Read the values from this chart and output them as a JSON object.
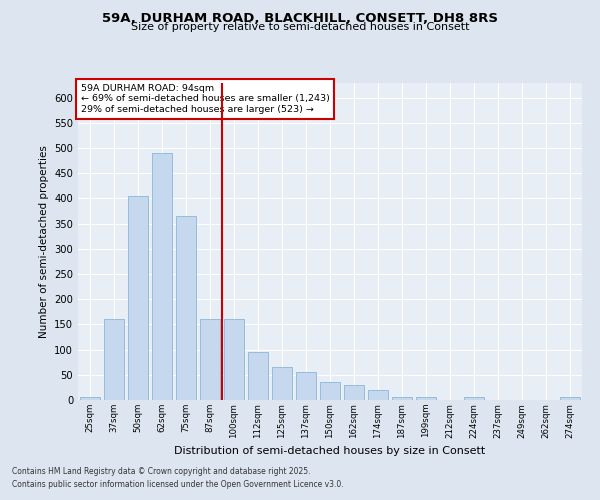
{
  "title_line1": "59A, DURHAM ROAD, BLACKHILL, CONSETT, DH8 8RS",
  "title_line2": "Size of property relative to semi-detached houses in Consett",
  "xlabel": "Distribution of semi-detached houses by size in Consett",
  "ylabel": "Number of semi-detached properties",
  "categories": [
    "25sqm",
    "37sqm",
    "50sqm",
    "62sqm",
    "75sqm",
    "87sqm",
    "100sqm",
    "112sqm",
    "125sqm",
    "137sqm",
    "150sqm",
    "162sqm",
    "174sqm",
    "187sqm",
    "199sqm",
    "212sqm",
    "224sqm",
    "237sqm",
    "249sqm",
    "262sqm",
    "274sqm"
  ],
  "values": [
    5,
    160,
    405,
    490,
    365,
    160,
    160,
    95,
    65,
    55,
    35,
    30,
    20,
    5,
    5,
    0,
    5,
    0,
    0,
    0,
    5
  ],
  "bar_color": "#c5d8ed",
  "bar_edge_color": "#7bafd4",
  "reference_line_index": 5,
  "reference_line_color": "#cc0000",
  "annotation_title": "59A DURHAM ROAD: 94sqm",
  "annotation_line1": "← 69% of semi-detached houses are smaller (1,243)",
  "annotation_line2": "29% of semi-detached houses are larger (523) →",
  "annotation_box_color": "#cc0000",
  "ylim": [
    0,
    630
  ],
  "yticks": [
    0,
    50,
    100,
    150,
    200,
    250,
    300,
    350,
    400,
    450,
    500,
    550,
    600
  ],
  "footnote_line1": "Contains HM Land Registry data © Crown copyright and database right 2025.",
  "footnote_line2": "Contains public sector information licensed under the Open Government Licence v3.0.",
  "bg_color": "#dde6f0",
  "plot_bg_color": "#e8eef5"
}
